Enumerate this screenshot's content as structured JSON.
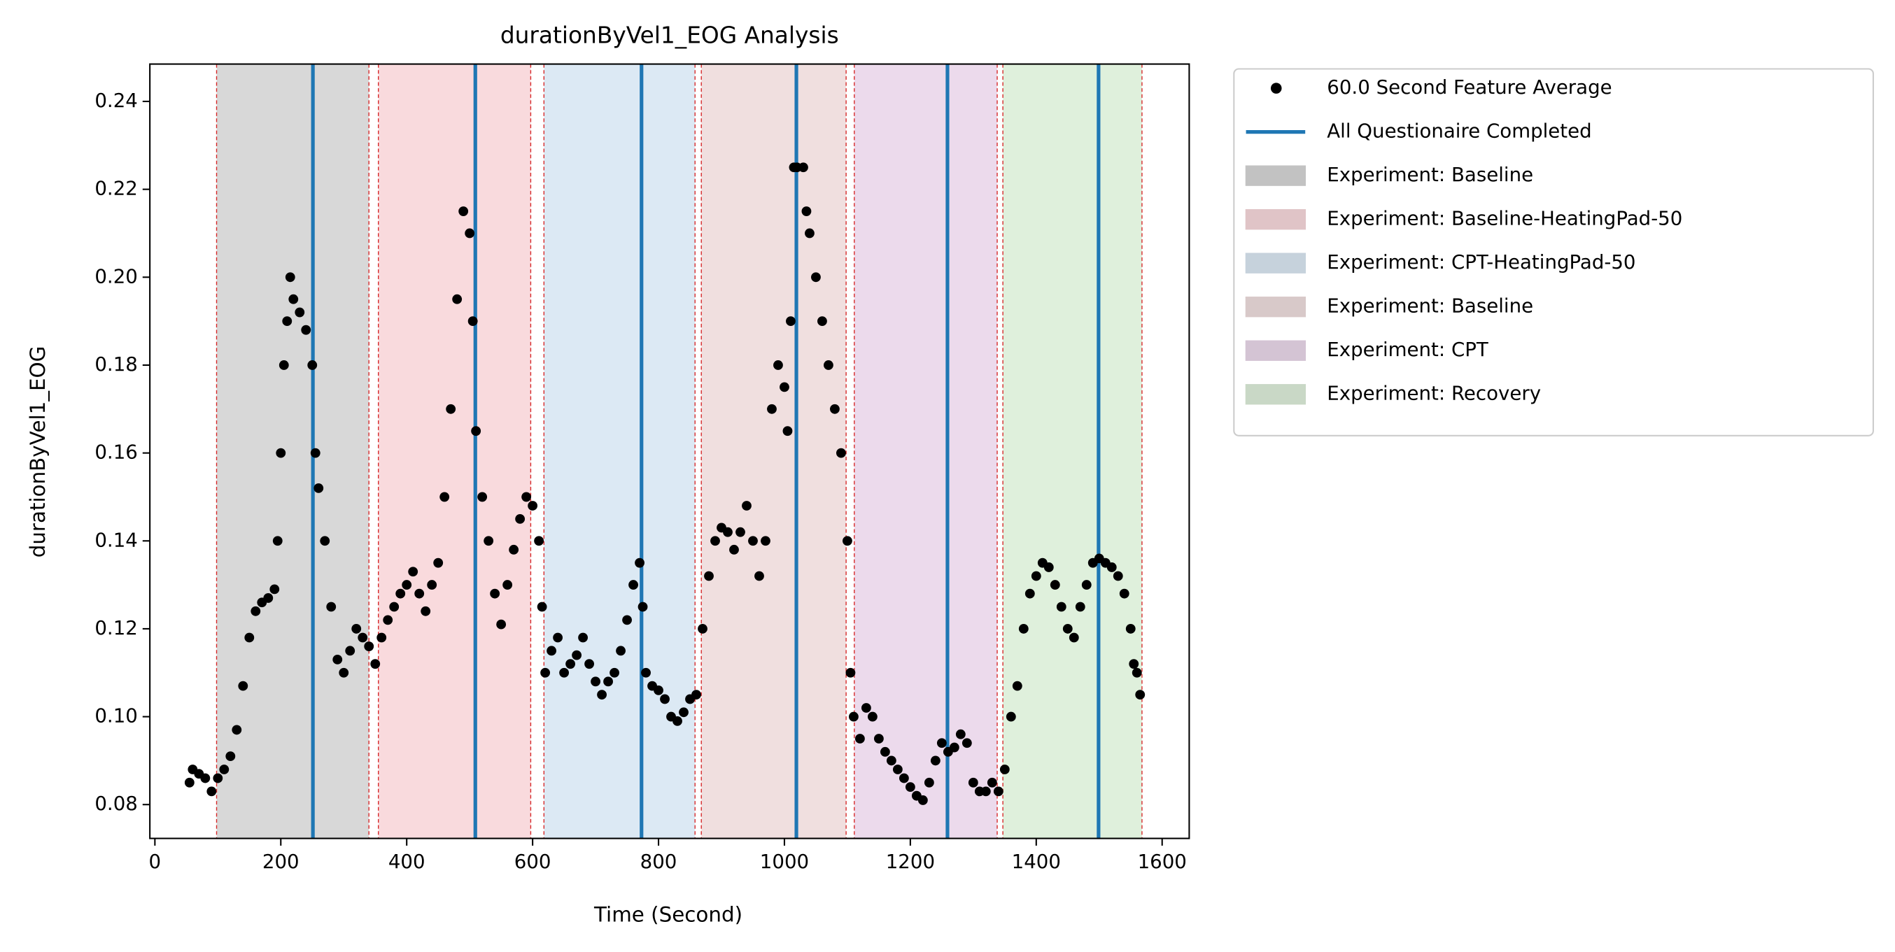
{
  "chart_data": {
    "type": "scatter",
    "title": "durationByVel1_EOG Analysis",
    "x_label": "Time (Second)",
    "y_label": "durationByVel1_EOG",
    "xlim": [
      -8,
      1643
    ],
    "ylim": [
      0.0723,
      0.2485
    ],
    "xticks": [
      0,
      200,
      400,
      600,
      800,
      1000,
      1200,
      1400,
      1600
    ],
    "yticks": [
      0.08,
      {
        "value": 0.1,
        "label": "0.10"
      },
      0.12,
      0.14,
      0.16,
      0.18,
      {
        "value": 0.2,
        "label": "0.20"
      },
      0.22,
      0.24
    ],
    "legend": "outside upper right",
    "x": [
      55,
      60,
      70,
      80,
      90,
      100,
      110,
      120,
      130,
      140,
      150,
      160,
      170,
      180,
      190,
      195,
      200,
      205,
      210,
      215,
      220,
      230,
      240,
      250,
      255,
      260,
      270,
      280,
      290,
      300,
      310,
      320,
      330,
      340,
      350,
      360,
      370,
      380,
      390,
      400,
      410,
      420,
      430,
      440,
      450,
      460,
      470,
      480,
      490,
      500,
      505,
      510,
      520,
      530,
      540,
      550,
      560,
      570,
      580,
      590,
      600,
      610,
      615,
      620,
      630,
      640,
      650,
      660,
      670,
      680,
      690,
      700,
      710,
      720,
      730,
      740,
      750,
      760,
      770,
      775,
      780,
      790,
      800,
      810,
      820,
      830,
      840,
      850,
      860,
      870,
      880,
      890,
      900,
      910,
      920,
      930,
      940,
      950,
      960,
      970,
      980,
      990,
      1000,
      1005,
      1010,
      1015,
      1020,
      1030,
      1035,
      1040,
      1050,
      1060,
      1070,
      1080,
      1090,
      1100,
      1105,
      1110,
      1120,
      1130,
      1140,
      1150,
      1160,
      1170,
      1180,
      1190,
      1200,
      1210,
      1220,
      1230,
      1240,
      1250,
      1260,
      1270,
      1280,
      1290,
      1300,
      1310,
      1320,
      1330,
      1340,
      1350,
      1360,
      1370,
      1380,
      1390,
      1400,
      1410,
      1420,
      1430,
      1440,
      1450,
      1460,
      1470,
      1480,
      1490,
      1500,
      1510,
      1520,
      1530,
      1540,
      1550,
      1555,
      1560,
      1565
    ],
    "series": [
      {
        "name": "60.0 Second Feature Average",
        "color": "#000000",
        "values": [
          0.085,
          0.088,
          0.087,
          0.086,
          0.083,
          0.086,
          0.088,
          0.091,
          0.097,
          0.107,
          0.118,
          0.124,
          0.126,
          0.127,
          0.129,
          0.14,
          0.16,
          0.18,
          0.19,
          0.2,
          0.195,
          0.192,
          0.188,
          0.18,
          0.16,
          0.152,
          0.14,
          0.125,
          0.113,
          0.11,
          0.115,
          0.12,
          0.118,
          0.116,
          0.112,
          0.118,
          0.122,
          0.125,
          0.128,
          0.13,
          0.133,
          0.128,
          0.124,
          0.13,
          0.135,
          0.15,
          0.17,
          0.195,
          0.215,
          0.21,
          0.19,
          0.165,
          0.15,
          0.14,
          0.128,
          0.121,
          0.13,
          0.138,
          0.145,
          0.15,
          0.148,
          0.14,
          0.125,
          0.11,
          0.115,
          0.118,
          0.11,
          0.112,
          0.114,
          0.118,
          0.112,
          0.108,
          0.105,
          0.108,
          0.11,
          0.115,
          0.122,
          0.13,
          0.135,
          0.125,
          0.11,
          0.107,
          0.106,
          0.104,
          0.1,
          0.099,
          0.101,
          0.104,
          0.105,
          0.12,
          0.132,
          0.14,
          0.143,
          0.142,
          0.138,
          0.142,
          0.148,
          0.14,
          0.132,
          0.14,
          0.17,
          0.18,
          0.175,
          0.165,
          0.19,
          0.225,
          0.225,
          0.225,
          0.215,
          0.21,
          0.2,
          0.19,
          0.18,
          0.17,
          0.16,
          0.14,
          0.11,
          0.1,
          0.095,
          0.102,
          0.1,
          0.095,
          0.092,
          0.09,
          0.088,
          0.086,
          0.084,
          0.082,
          0.081,
          0.085,
          0.09,
          0.094,
          0.092,
          0.093,
          0.096,
          0.094,
          0.085,
          0.083,
          0.083,
          0.085,
          0.083,
          0.088,
          0.1,
          0.107,
          0.12,
          0.128,
          0.132,
          0.135,
          0.134,
          0.13,
          0.125,
          0.12,
          0.118,
          0.125,
          0.13,
          0.135,
          0.136,
          0.135,
          0.134,
          0.132,
          0.128,
          0.12,
          0.112,
          0.11,
          0.105
        ]
      }
    ],
    "vlines": {
      "name": "All Questionaire Completed",
      "color": "#1f77b4",
      "x": [
        251,
        509,
        773,
        1019,
        1259,
        1499
      ]
    },
    "span_edge_color": "#d62728",
    "spans": [
      {
        "name": "Experiment: Baseline",
        "color": "#d8d8d8",
        "start": 98,
        "end": 340
      },
      {
        "name": "Experiment: Baseline-HeatingPad-50",
        "color": "#f9dadd",
        "start": 355,
        "end": 597
      },
      {
        "name": "Experiment: CPT-HeatingPad-50",
        "color": "#dce9f4",
        "start": 618,
        "end": 858
      },
      {
        "name": "Experiment: Baseline",
        "color": "#f0dfdf",
        "start": 868,
        "end": 1098
      },
      {
        "name": "Experiment: CPT",
        "color": "#ecdaec",
        "start": 1111,
        "end": 1338
      },
      {
        "name": "Experiment: Recovery",
        "color": "#dff0dc",
        "start": 1347,
        "end": 1568
      }
    ]
  }
}
